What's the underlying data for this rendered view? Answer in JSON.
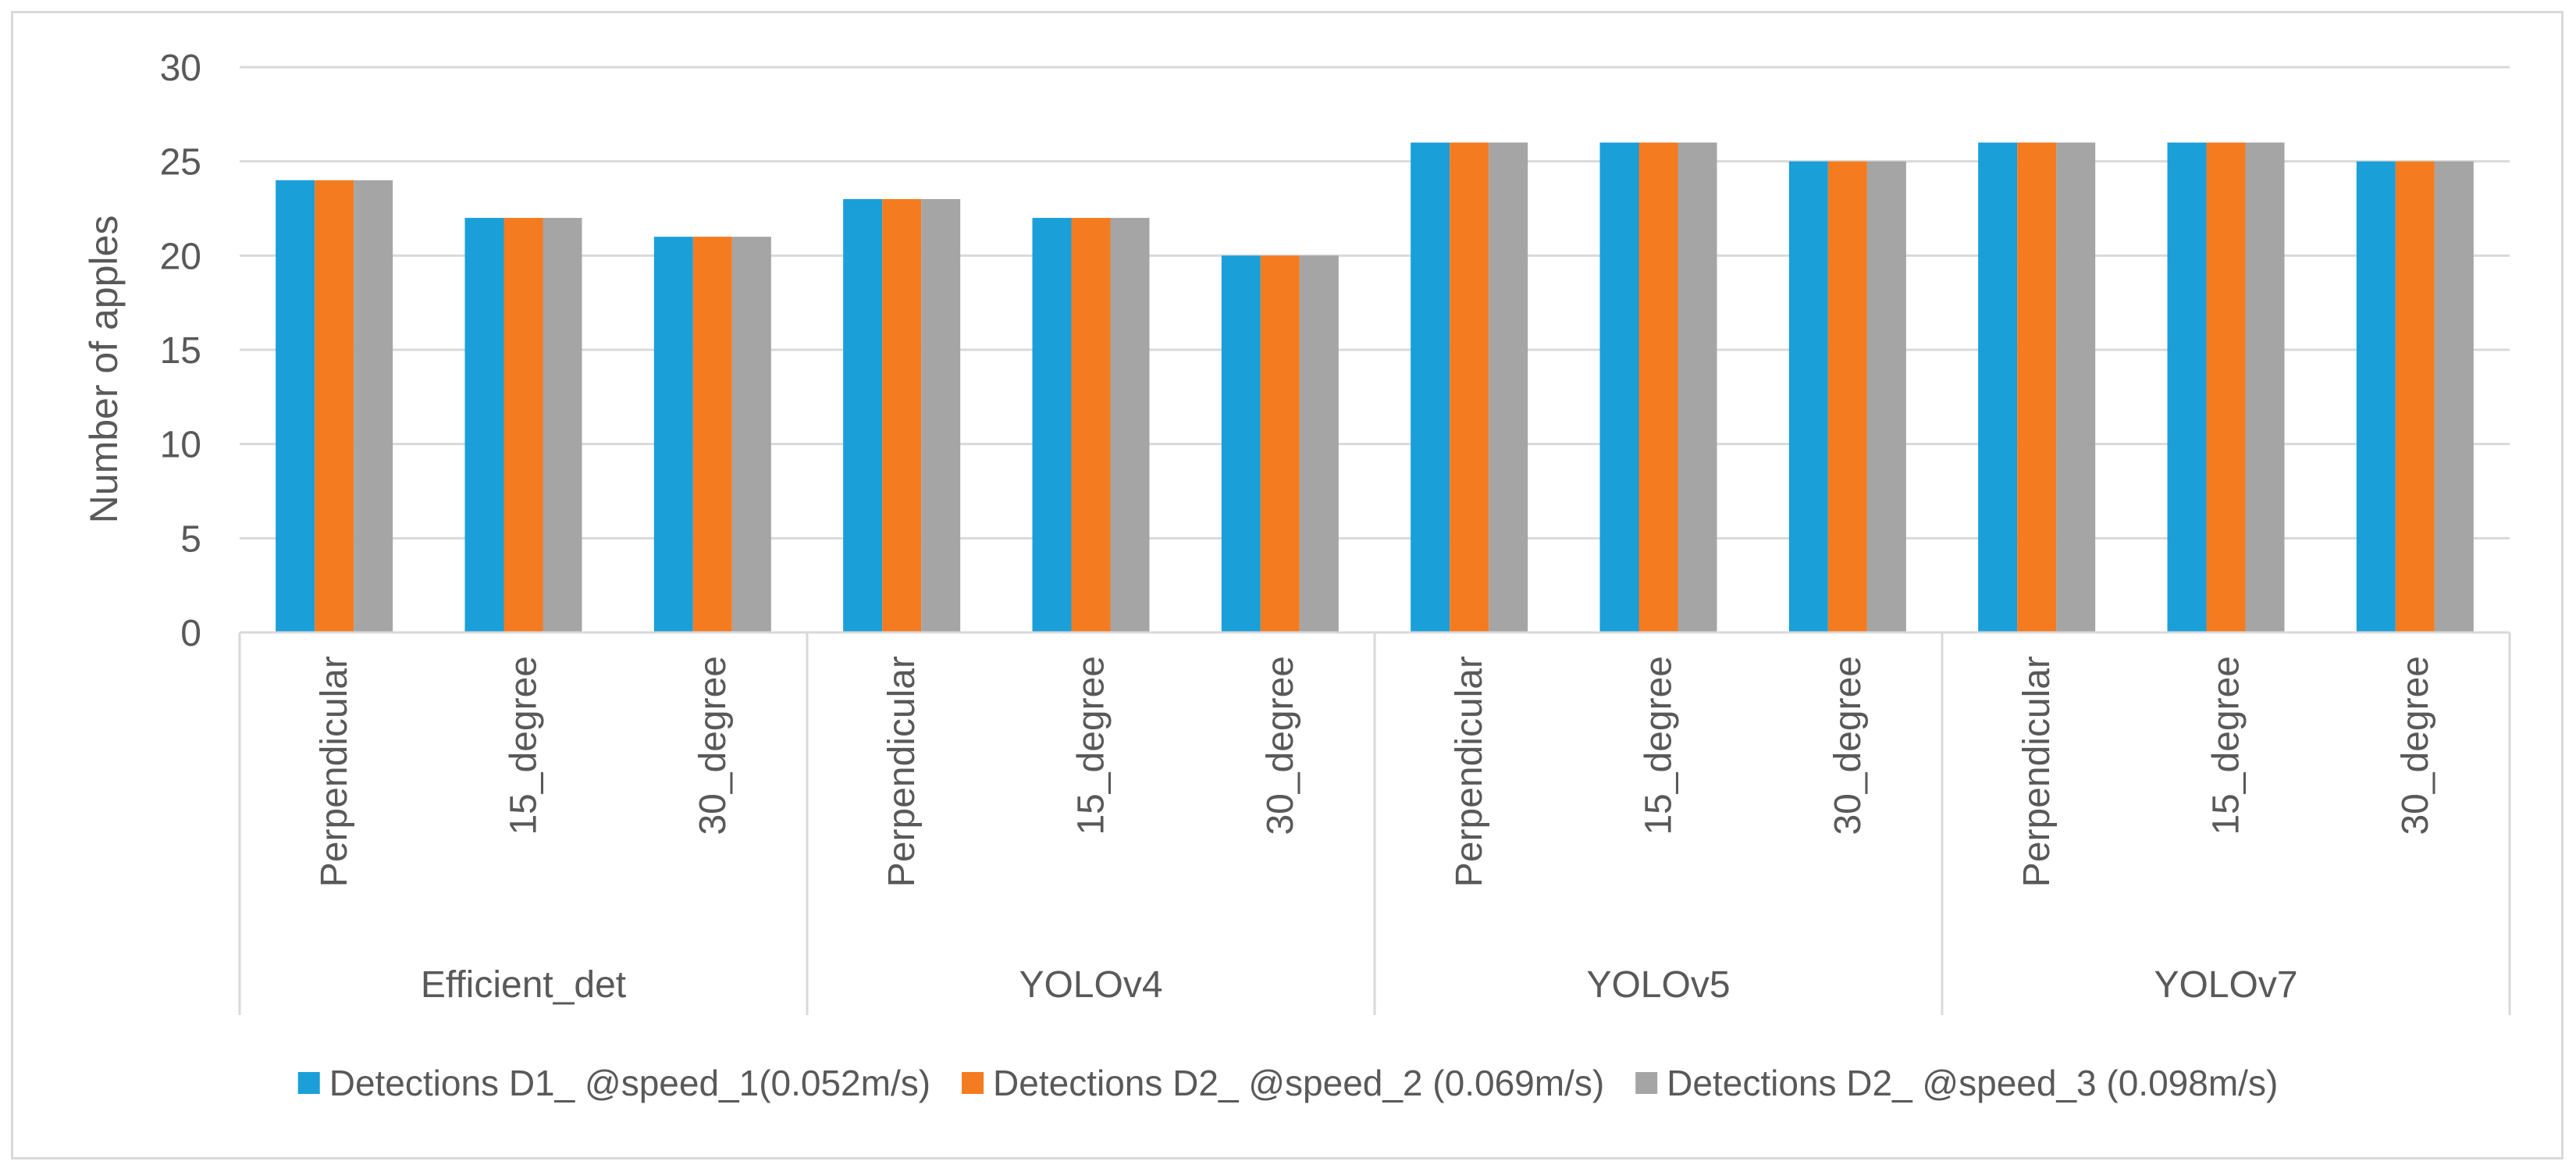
{
  "chart_data": {
    "type": "bar",
    "title": "",
    "xlabel": "",
    "ylabel": "Number of apples",
    "ylim": [
      0,
      30
    ],
    "yticks": [
      0,
      5,
      10,
      15,
      20,
      25,
      30
    ],
    "grid": true,
    "legend_position": "bottom",
    "groups": [
      {
        "name": "Efficient_det",
        "categories": [
          "Perpendicular",
          "15_degree",
          "30_degree"
        ]
      },
      {
        "name": "YOLOv4",
        "categories": [
          "Perpendicular",
          "15_degree",
          "30_degree"
        ]
      },
      {
        "name": "YOLOv5",
        "categories": [
          "Perpendicular",
          "15_degree",
          "30_degree"
        ]
      },
      {
        "name": "YOLOv7",
        "categories": [
          "Perpendicular",
          "15_degree",
          "30_degree"
        ]
      }
    ],
    "series": [
      {
        "name": "Detections D1_ @speed_1(0.052m/s)",
        "color": "#1a9fd9",
        "values": [
          24,
          22,
          21,
          23,
          22,
          20,
          26,
          26,
          25,
          26,
          26,
          25
        ]
      },
      {
        "name": "Detections D2_ @speed_2 (0.069m/s)",
        "color": "#f47b20",
        "values": [
          24,
          22,
          21,
          23,
          22,
          20,
          26,
          26,
          25,
          26,
          26,
          25
        ]
      },
      {
        "name": "Detections D2_ @speed_3 (0.098m/s)",
        "color": "#a5a5a5",
        "values": [
          24,
          22,
          21,
          23,
          22,
          20,
          26,
          26,
          25,
          26,
          26,
          25
        ]
      }
    ]
  }
}
